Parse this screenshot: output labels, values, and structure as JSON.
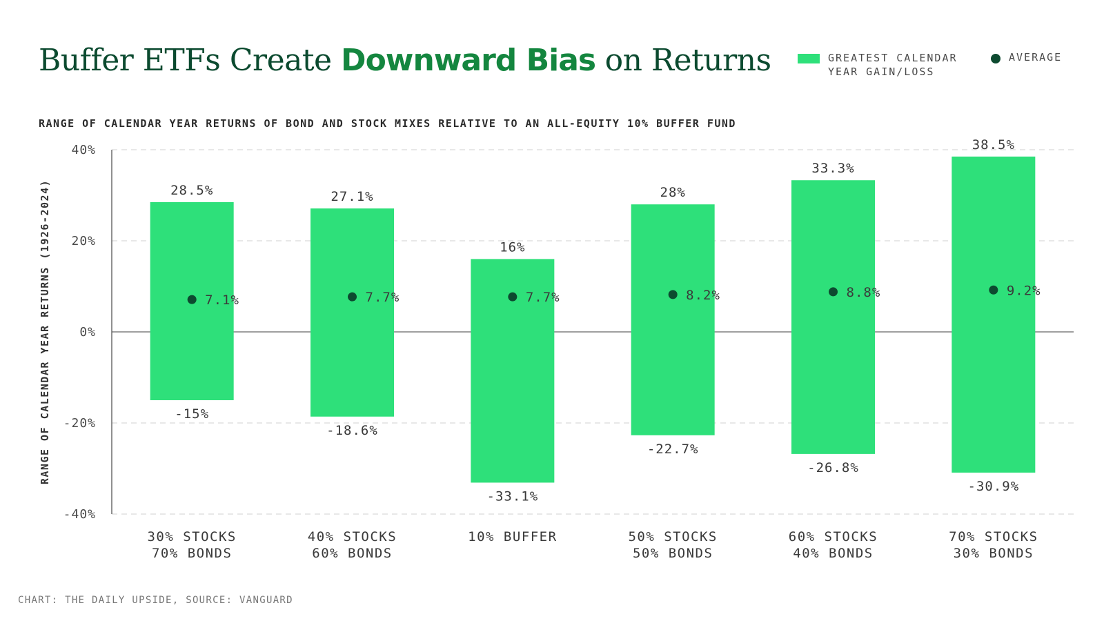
{
  "header": {
    "title_part1": "Buffer ETFs Create ",
    "title_highlight": "Downward Bias",
    "title_part2": " on Returns",
    "subtitle": "RANGE OF CALENDAR YEAR RETURNS OF BOND AND STOCK MIXES RELATIVE TO AN ALL-EQUITY 10% BUFFER FUND"
  },
  "legend": {
    "range_label": "GREATEST CALENDAR YEAR GAIN/LOSS",
    "average_label": "AVERAGE"
  },
  "footer": {
    "source": "CHART: THE DAILY UPSIDE, SOURCE: VANGUARD"
  },
  "colors": {
    "bar": "#2ee07a",
    "dot": "#0d4a30",
    "title": "#0b4a2f",
    "highlight": "#14863f"
  },
  "chart_data": {
    "type": "bar",
    "ylabel": "RANGE OF CALENDAR YEAR RETURNS (1926-2024)",
    "ylim": [
      -40,
      40
    ],
    "yticks": [
      40,
      20,
      0,
      -20,
      -40
    ],
    "ytick_labels": [
      "40%",
      "20%",
      "0%",
      "-20%",
      "-40%"
    ],
    "grid": true,
    "legend_position": "top-right",
    "categories": [
      [
        "30% STOCKS",
        "70% BONDS"
      ],
      [
        "40% STOCKS",
        "60% BONDS"
      ],
      [
        "10% BUFFER"
      ],
      [
        "50% STOCKS",
        "50% BONDS"
      ],
      [
        "60% STOCKS",
        "40% BONDS"
      ],
      [
        "70% STOCKS",
        "30% BONDS"
      ]
    ],
    "series": [
      {
        "name": "GREATEST CALENDAR YEAR GAIN/LOSS",
        "high": [
          28.5,
          27.1,
          16,
          28,
          33.3,
          38.5
        ],
        "low": [
          -15,
          -18.6,
          -33.1,
          -22.7,
          -26.8,
          -30.9
        ]
      },
      {
        "name": "AVERAGE",
        "values": [
          7.1,
          7.7,
          7.7,
          8.2,
          8.8,
          9.2
        ]
      }
    ],
    "high_labels": [
      "28.5%",
      "27.1%",
      "16%",
      "28%",
      "33.3%",
      "38.5%"
    ],
    "low_labels": [
      "-15%",
      "-18.6%",
      "-33.1%",
      "-22.7%",
      "-26.8%",
      "-30.9%"
    ],
    "avg_labels": [
      "7.1%",
      "7.7%",
      "7.7%",
      "8.2%",
      "8.8%",
      "9.2%"
    ]
  }
}
